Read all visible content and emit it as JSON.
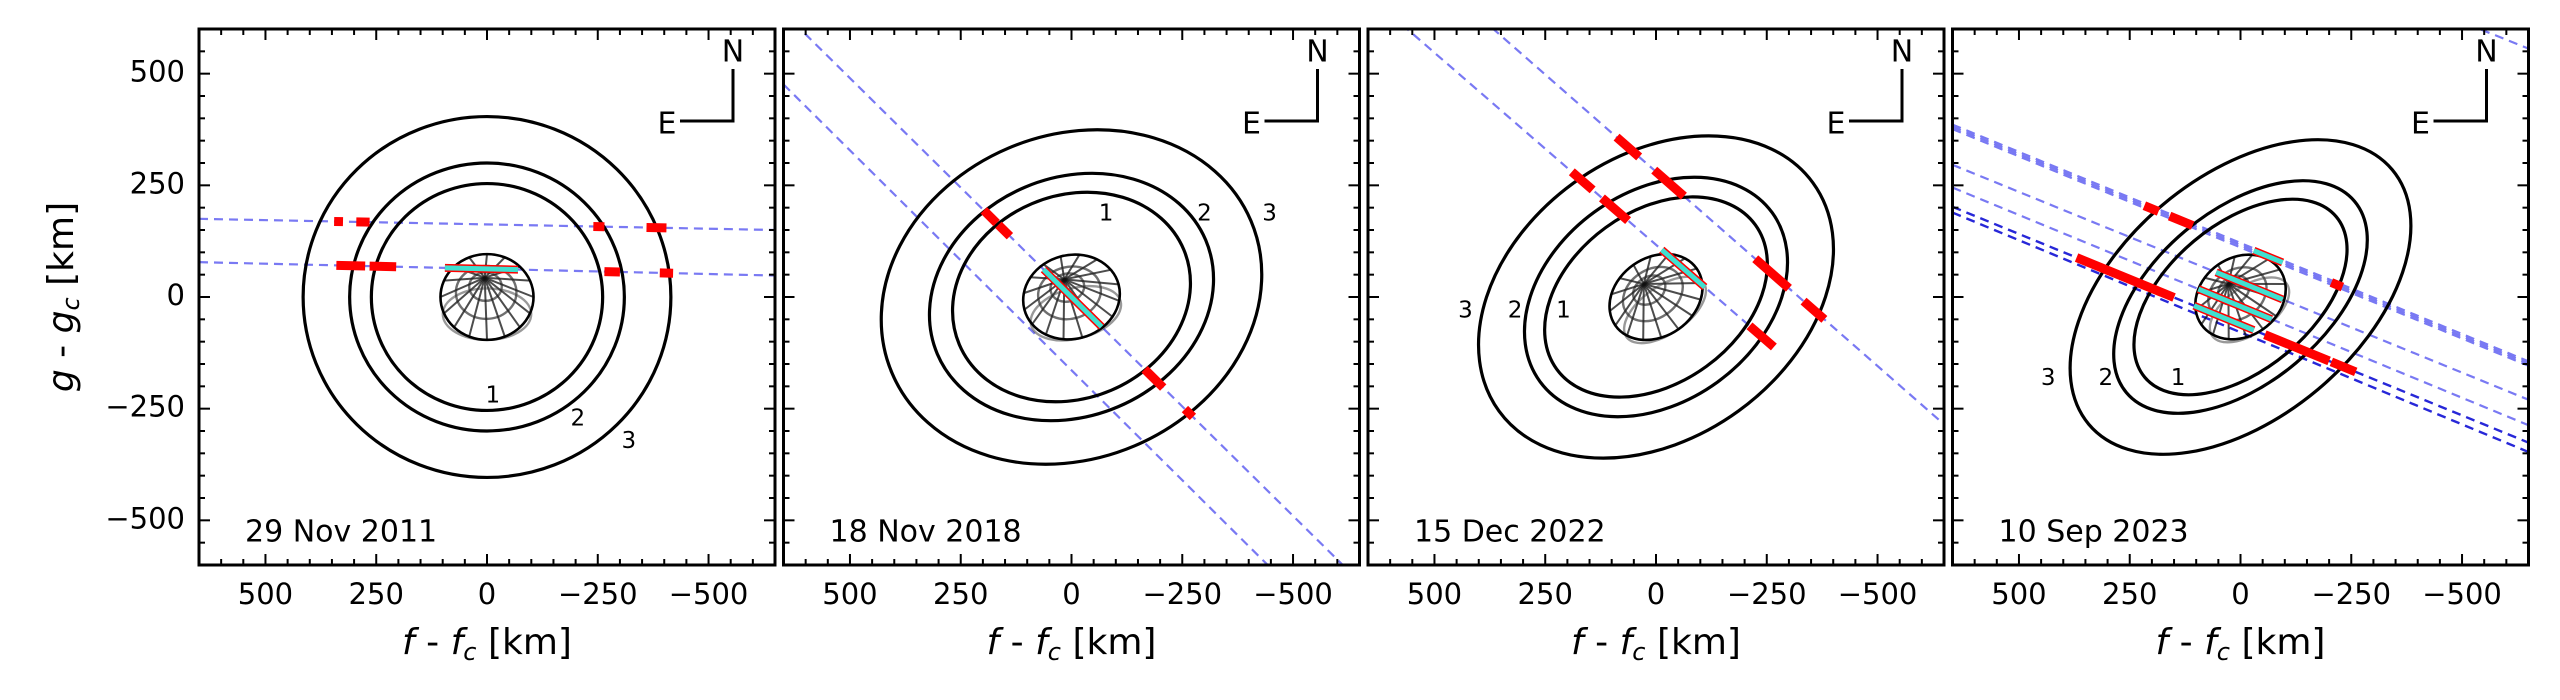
{
  "figure": {
    "ylabel": {
      "var": "g",
      "sep": " - ",
      "var2": "g",
      "sub": "c",
      "unit": " [km]"
    },
    "xlabel": {
      "var": "f",
      "sep": " - ",
      "var2": "f",
      "sub": "c",
      "unit": " [km]"
    }
  },
  "colors": {
    "chord_light": "#6262f2",
    "chord_dark": "#1c1cd6",
    "positive": "#ff0000",
    "central": "#40e0d0",
    "contour": "#000000"
  },
  "chart_data": [
    {
      "type": "line",
      "title": "29 Nov 2011",
      "xlim": [
        650,
        -650
      ],
      "ylim": [
        -600,
        600
      ],
      "xticks": [
        500,
        250,
        0,
        -250,
        -500
      ],
      "yticks": [
        500,
        250,
        0,
        -250,
        -500
      ],
      "compass": {
        "north": "N",
        "east": "E"
      },
      "contours": [
        {
          "label": "1",
          "a": 261,
          "b": 254,
          "angle": 0
        },
        {
          "label": "2",
          "a": 310,
          "b": 300,
          "angle": 0
        },
        {
          "label": "3",
          "a": 415,
          "b": 404,
          "angle": 0
        }
      ],
      "body": {
        "a": 105,
        "b": 96,
        "angle": 0
      },
      "chords": [
        {
          "line": [
            650,
            175,
            -650,
            150
          ],
          "style": "light",
          "red": [
            [
              345,
              325
            ],
            [
              295,
              265
            ],
            [
              -240,
              -265
            ],
            [
              -360,
              -405
            ]
          ],
          "cyan": []
        },
        {
          "line": [
            650,
            78,
            -650,
            48
          ],
          "style": "light",
          "red": [
            [
              340,
              275
            ],
            [
              265,
              205
            ],
            [
              -265,
              -300
            ],
            [
              -390,
              -420
            ]
          ],
          "cyan": [
            [
              95,
              -70
            ]
          ]
        }
      ]
    },
    {
      "type": "line",
      "title": "18 Nov 2018",
      "xlim": [
        650,
        -650
      ],
      "ylim": [
        -600,
        600
      ],
      "xticks": [
        500,
        250,
        0,
        -250,
        -500
      ],
      "yticks": [
        500,
        250,
        0,
        -250,
        -500
      ],
      "compass": {
        "north": "N",
        "east": "E"
      },
      "contours": [
        {
          "label": "1",
          "a": 275,
          "b": 227,
          "angle": 23
        },
        {
          "label": "2",
          "a": 329,
          "b": 267,
          "angle": 23
        },
        {
          "label": "3",
          "a": 440,
          "b": 362,
          "angle": 23
        }
      ],
      "body": {
        "a": 110,
        "b": 94,
        "angle": 15
      },
      "chords": [
        {
          "line": [
            650,
            637,
            -650,
            -637
          ],
          "style": "light",
          "red": [
            [
              198,
              169
            ],
            [
              165,
              139
            ],
            [
              -165,
              -207
            ],
            [
              -256,
              -274
            ]
          ],
          "cyan": [
            [
              63,
              -68
            ]
          ]
        },
        {
          "line": [
            650,
            476,
            -650,
            -804
          ],
          "style": "light",
          "red": [],
          "cyan": []
        }
      ]
    },
    {
      "type": "line",
      "title": "15 Dec 2022",
      "xlim": [
        650,
        -650
      ],
      "ylim": [
        -600,
        600
      ],
      "xticks": [
        500,
        250,
        0,
        -250,
        -500
      ],
      "yticks": [
        500,
        250,
        0,
        -250,
        -500
      ],
      "compass": {
        "north": "N",
        "east": "E"
      },
      "contours": [
        {
          "label": "1",
          "a": 277,
          "b": 192,
          "angle": 36
        },
        {
          "label": "2",
          "a": 324,
          "b": 235,
          "angle": 36
        },
        {
          "label": "3",
          "a": 438,
          "b": 315,
          "angle": 36
        }
      ],
      "body": {
        "a": 112,
        "b": 88,
        "angle": 35
      },
      "chords": [
        {
          "line": [
            650,
            846,
            -650,
            -285
          ],
          "style": "light",
          "red": [
            [
              89,
              38
            ],
            [
              4,
              -63
            ],
            [
              -224,
              -300
            ],
            [
              -333,
              -380
            ]
          ],
          "cyan": []
        },
        {
          "line": [
            650,
            676,
            -266,
            -112
          ],
          "style": "light",
          "red": [
            [
              190,
              143
            ],
            [
              122,
              63
            ],
            [
              -211,
              -266
            ]
          ],
          "cyan": [
            [
              -13,
              -110
            ]
          ]
        }
      ]
    },
    {
      "type": "line",
      "title": "10 Sep 2023",
      "xlim": [
        650,
        -650
      ],
      "ylim": [
        -600,
        600
      ],
      "xticks": [
        500,
        250,
        0,
        -250,
        -500
      ],
      "yticks": [
        500,
        250,
        0,
        -250,
        -500
      ],
      "compass": {
        "north": "N",
        "east": "E"
      },
      "contours": [
        {
          "label": "1",
          "a": 282,
          "b": 163,
          "angle": 40
        },
        {
          "label": "2",
          "a": 336,
          "b": 193,
          "angle": 40
        },
        {
          "label": "3",
          "a": 447,
          "b": 270,
          "angle": 40
        }
      ],
      "body": {
        "a": 108,
        "b": 88,
        "angle": 35
      },
      "chords": [
        {
          "line": [
            650,
            1076,
            -650,
            556
          ],
          "style": "light",
          "red": [],
          "cyan": []
        },
        {
          "line": [
            650,
            386,
            -650,
            -144
          ],
          "style": "light",
          "red": [],
          "cyan": []
        },
        {
          "line": [
            650,
            376,
            -650,
            -154
          ],
          "style": "light",
          "red": [],
          "cyan": []
        },
        {
          "line": [
            650,
            381,
            -650,
            -149
          ],
          "style": "light",
          "red": [
            [
              217,
              185
            ],
            [
              160,
              108
            ],
            [
              -205,
              -230
            ]
          ],
          "cyan": [
            [
              -30,
              -95
            ]
          ]
        },
        {
          "line": [
            650,
            296,
            -650,
            -230
          ],
          "style": "light",
          "red": [],
          "cyan": [
            [
              55,
              -95
            ]
          ]
        },
        {
          "line": [
            650,
            245,
            -650,
            -287
          ],
          "style": "light",
          "red": [],
          "cyan": [
            [
              95,
              -70
            ]
          ]
        },
        {
          "line": [
            650,
            202,
            -650,
            -326
          ],
          "style": "dark",
          "red": [
            [
              370,
              150
            ],
            [
              -55,
              -200
            ],
            [
              -205,
              -260
            ]
          ],
          "cyan": [
            [
              105,
              -30
            ]
          ]
        },
        {
          "line": [
            650,
            189,
            -650,
            -347
          ],
          "style": "dark",
          "red": [],
          "cyan": []
        }
      ]
    }
  ]
}
